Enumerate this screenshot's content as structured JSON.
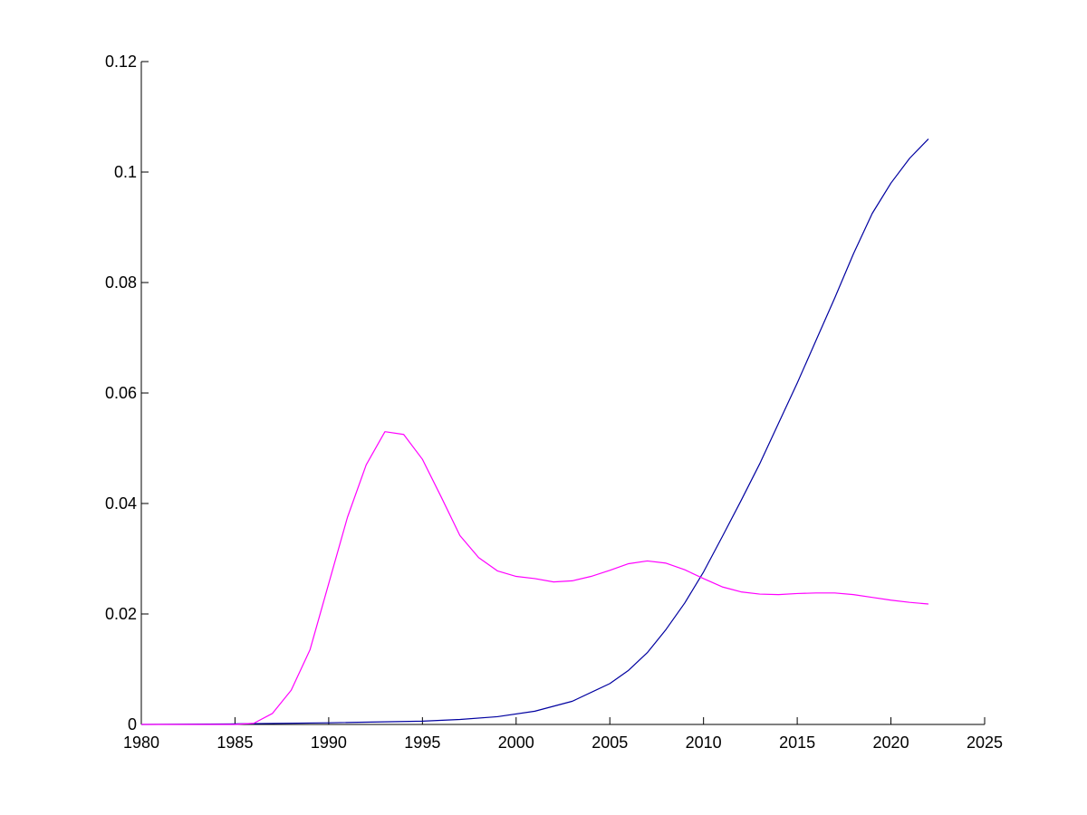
{
  "chart_data": {
    "type": "line",
    "title": "",
    "xlabel": "",
    "ylabel": "",
    "xlim": [
      1980,
      2025
    ],
    "ylim": [
      0,
      0.12
    ],
    "xticks": [
      "1980",
      "1985",
      "1990",
      "1995",
      "2000",
      "2005",
      "2010",
      "2015",
      "2020",
      "2025"
    ],
    "yticks": [
      "0",
      "0.02",
      "0.04",
      "0.06",
      "0.08",
      "0.1",
      "0.12"
    ],
    "grid": false,
    "legend": false,
    "series": [
      {
        "color": "#0000a0",
        "x": [
          1980,
          1985,
          1990,
          1995,
          1997,
          1999,
          2001,
          2003,
          2005,
          2006,
          2007,
          2008,
          2009,
          2010,
          2011,
          2012,
          2013,
          2014,
          2015,
          2016,
          2017,
          2018,
          2019,
          2020,
          2021,
          2022
        ],
        "y": [
          0.0,
          0.0001,
          0.0003,
          0.0006,
          0.0009,
          0.0014,
          0.0024,
          0.0042,
          0.0074,
          0.0098,
          0.013,
          0.0172,
          0.022,
          0.0276,
          0.034,
          0.0405,
          0.0472,
          0.0545,
          0.0618,
          0.0695,
          0.0772,
          0.0852,
          0.0925,
          0.098,
          0.1025,
          0.106
        ]
      },
      {
        "color": "#ff00ff",
        "x": [
          1980,
          1985,
          1986,
          1987,
          1988,
          1989,
          1990,
          1991,
          1992,
          1993,
          1994,
          1995,
          1996,
          1997,
          1998,
          1999,
          2000,
          2001,
          2002,
          2003,
          2004,
          2005,
          2006,
          2007,
          2008,
          2009,
          2010,
          2011,
          2012,
          2013,
          2014,
          2015,
          2016,
          2017,
          2018,
          2019,
          2020,
          2021,
          2022
        ],
        "y": [
          0.0,
          0.0,
          0.0002,
          0.002,
          0.0062,
          0.0135,
          0.0255,
          0.0375,
          0.047,
          0.053,
          0.0525,
          0.048,
          0.0412,
          0.0342,
          0.0302,
          0.0278,
          0.0268,
          0.0264,
          0.0258,
          0.026,
          0.0268,
          0.0279,
          0.0291,
          0.0296,
          0.0292,
          0.028,
          0.0264,
          0.0249,
          0.024,
          0.0236,
          0.0235,
          0.0237,
          0.0238,
          0.0238,
          0.0235,
          0.023,
          0.0225,
          0.0221,
          0.0218
        ]
      }
    ]
  }
}
